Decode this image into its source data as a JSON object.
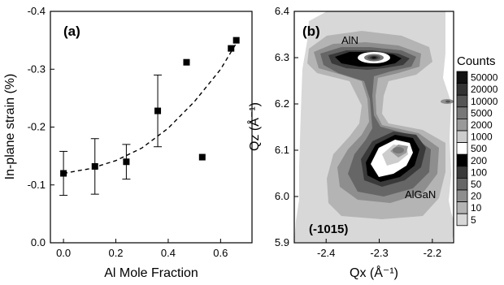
{
  "chart_data": [
    {
      "type": "scatter",
      "panel_label": "(a)",
      "xlabel": "Al Mole Fraction",
      "ylabel": "In-plane strain (%)",
      "xlim": [
        -0.05,
        0.72
      ],
      "ylim": [
        0.0,
        -0.4
      ],
      "y_axis_inverted": true,
      "x_ticks": [
        "0.0",
        "0.2",
        "0.4",
        "0.6"
      ],
      "y_ticks": [
        "0.0",
        "-0.1",
        "-0.2",
        "-0.3",
        "-0.4"
      ],
      "points": [
        {
          "x": 0.0,
          "y": -0.12,
          "err": 0.038
        },
        {
          "x": 0.12,
          "y": -0.132,
          "err": 0.048
        },
        {
          "x": 0.24,
          "y": -0.14,
          "err": 0.03
        },
        {
          "x": 0.36,
          "y": -0.228,
          "err": 0.062
        },
        {
          "x": 0.47,
          "y": -0.312
        },
        {
          "x": 0.53,
          "y": -0.148
        },
        {
          "x": 0.64,
          "y": -0.336
        },
        {
          "x": 0.66,
          "y": -0.35
        }
      ],
      "fit_curve": {
        "style": "dashed",
        "points": [
          [
            0.0,
            -0.12
          ],
          [
            0.1,
            -0.128
          ],
          [
            0.2,
            -0.142
          ],
          [
            0.3,
            -0.164
          ],
          [
            0.4,
            -0.198
          ],
          [
            0.5,
            -0.244
          ],
          [
            0.6,
            -0.3
          ],
          [
            0.66,
            -0.345
          ]
        ]
      }
    },
    {
      "type": "contour",
      "panel_label": "(b)",
      "xlabel": "Qx (Å⁻¹)",
      "ylabel": "Qz (Å⁻¹)",
      "xlim": [
        -2.46,
        -2.16
      ],
      "ylim": [
        5.9,
        6.4
      ],
      "x_ticks": [
        "-2.4",
        "-2.3",
        "-2.2"
      ],
      "y_ticks": [
        "5.9",
        "6.0",
        "6.1",
        "6.2",
        "6.3",
        "6.4"
      ],
      "reflection": "(-1015)",
      "peaks": [
        {
          "label": "AlN",
          "qx": -2.3,
          "qz": 6.3
        },
        {
          "label": "AlGaN",
          "qx": -2.28,
          "qz": 6.1
        }
      ],
      "colorbar": {
        "title": "Counts",
        "levels": [
          "50000",
          "20000",
          "10000",
          "5000",
          "2000",
          "1000",
          "500",
          "200",
          "100",
          "50",
          "20",
          "10",
          "5"
        ],
        "colors": [
          "#111111",
          "#333333",
          "#555555",
          "#777777",
          "#999999",
          "#cccccc",
          "#ffffff",
          "#000000",
          "#3a3a3a",
          "#666666",
          "#8e8e8e",
          "#b4b4b4",
          "#d8d8d8"
        ]
      }
    }
  ]
}
